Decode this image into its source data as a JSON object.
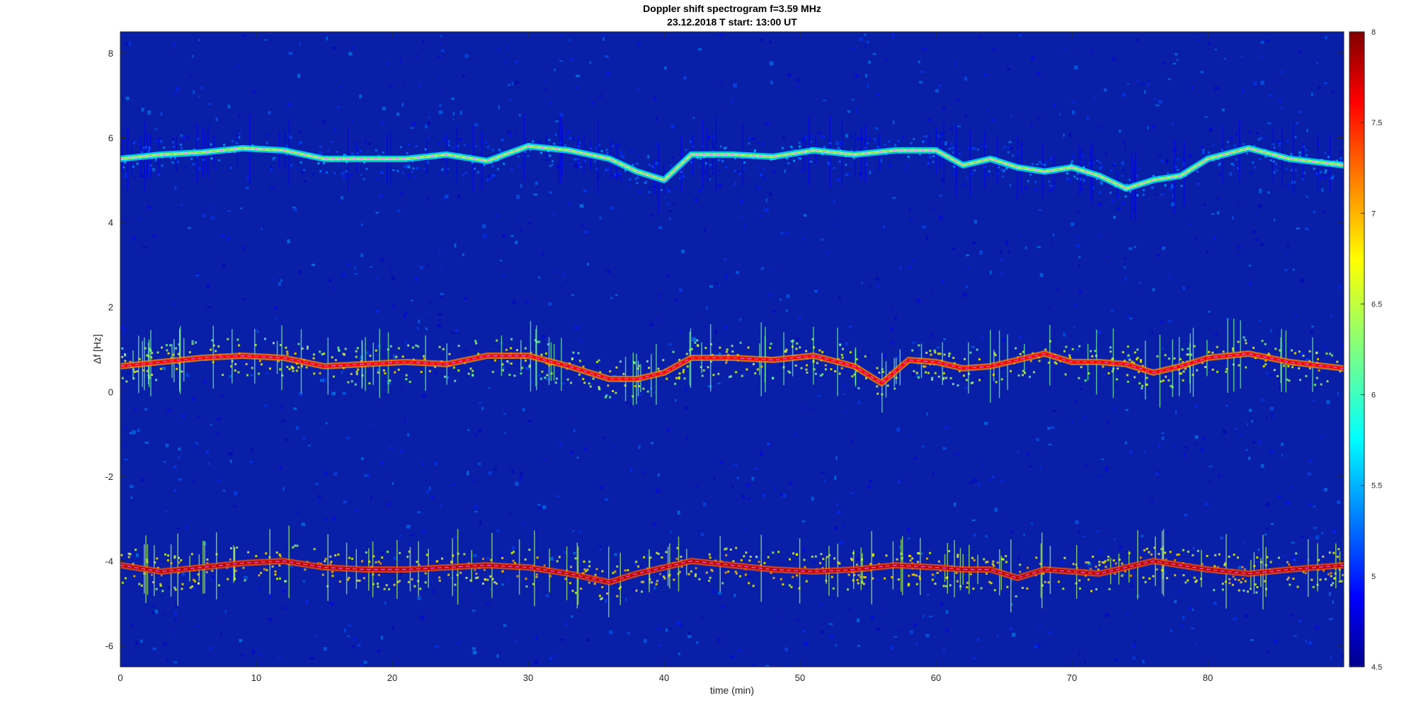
{
  "chart_data": {
    "type": "heatmap",
    "title_line1": "Doppler shift spectrogram f=3.59 MHz",
    "title_line2": "23.12.2018   T start: 13:00 UT",
    "xlabel": "time (min)",
    "ylabel": "Δf [Hz]",
    "xlim": [
      0,
      90
    ],
    "ylim": [
      -6.5,
      8.5
    ],
    "x_ticks": [
      0,
      10,
      20,
      30,
      40,
      50,
      60,
      70,
      80
    ],
    "y_ticks": [
      -6,
      -4,
      -2,
      0,
      2,
      4,
      6,
      8
    ],
    "colorbar": {
      "colormap": "jet",
      "range": [
        4.5,
        8
      ],
      "ticks": [
        4.5,
        5,
        5.5,
        6,
        6.5,
        7,
        7.5,
        8
      ]
    },
    "background_color": "#0a1fa8",
    "series": [
      {
        "label": "upper trace",
        "x": [
          0,
          3,
          6,
          9,
          12,
          15,
          18,
          21,
          24,
          27,
          30,
          33,
          36,
          38,
          40,
          42,
          45,
          48,
          51,
          54,
          57,
          60,
          62,
          64,
          66,
          68,
          70,
          72,
          74,
          76,
          78,
          80,
          83,
          86,
          90
        ],
        "y": [
          5.5,
          5.6,
          5.65,
          5.75,
          5.7,
          5.5,
          5.5,
          5.5,
          5.6,
          5.45,
          5.8,
          5.7,
          5.5,
          5.2,
          5.0,
          5.6,
          5.6,
          5.55,
          5.7,
          5.6,
          5.7,
          5.7,
          5.35,
          5.5,
          5.3,
          5.2,
          5.3,
          5.1,
          4.8,
          5.0,
          5.1,
          5.5,
          5.75,
          5.5,
          5.35
        ],
        "intensity": 6.3
      },
      {
        "label": "middle trace",
        "x": [
          0,
          3,
          6,
          9,
          12,
          15,
          18,
          21,
          24,
          27,
          30,
          33,
          36,
          38,
          40,
          42,
          45,
          48,
          51,
          54,
          56,
          58,
          60,
          62,
          64,
          66,
          68,
          70,
          72,
          74,
          76,
          78,
          80,
          83,
          86,
          90
        ],
        "y": [
          0.6,
          0.7,
          0.8,
          0.85,
          0.8,
          0.6,
          0.65,
          0.7,
          0.65,
          0.85,
          0.85,
          0.6,
          0.3,
          0.3,
          0.45,
          0.8,
          0.8,
          0.75,
          0.85,
          0.6,
          0.2,
          0.75,
          0.7,
          0.55,
          0.6,
          0.75,
          0.9,
          0.7,
          0.7,
          0.65,
          0.45,
          0.6,
          0.8,
          0.9,
          0.7,
          0.55
        ],
        "intensity": 7.6
      },
      {
        "label": "lower trace",
        "x": [
          0,
          3,
          6,
          9,
          12,
          15,
          18,
          21,
          24,
          27,
          30,
          33,
          36,
          38,
          40,
          42,
          45,
          48,
          51,
          54,
          57,
          60,
          62,
          64,
          66,
          68,
          70,
          72,
          74,
          76,
          78,
          80,
          83,
          86,
          90
        ],
        "y": [
          -4.1,
          -4.25,
          -4.15,
          -4.05,
          -4.0,
          -4.15,
          -4.2,
          -4.2,
          -4.15,
          -4.1,
          -4.15,
          -4.3,
          -4.5,
          -4.3,
          -4.15,
          -4.0,
          -4.1,
          -4.2,
          -4.25,
          -4.2,
          -4.1,
          -4.15,
          -4.2,
          -4.2,
          -4.4,
          -4.2,
          -4.25,
          -4.3,
          -4.15,
          -4.0,
          -4.1,
          -4.2,
          -4.3,
          -4.2,
          -4.1
        ],
        "intensity": 7.8
      }
    ]
  }
}
